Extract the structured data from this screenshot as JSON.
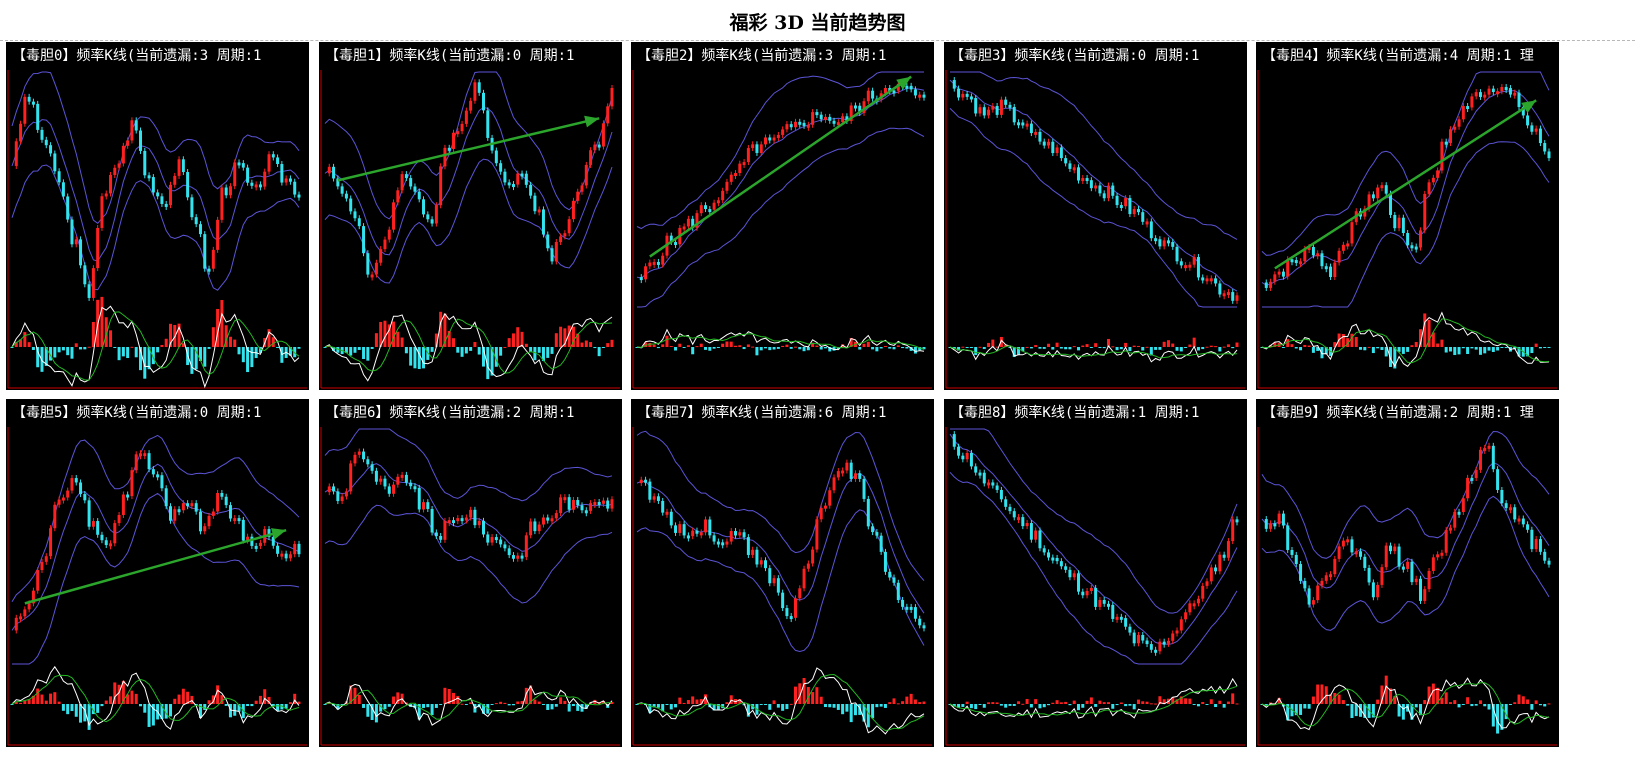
{
  "page": {
    "title": "福彩 3D 当前趋势图"
  },
  "colors": {
    "background": "#000000",
    "axis": "#cc0000",
    "up_bar": "#ff2020",
    "down_bar": "#33e3ee",
    "bands": "#5b54d6",
    "trend_arrow": "#2ba52b",
    "indicator_fast": "#ffffff",
    "indicator_slow": "#22b722"
  },
  "panels": [
    {
      "label": "【毒胆0】频率K线(当前遗漏:3 周期:1"
    },
    {
      "label": "【毒胆1】频率K线(当前遗漏:0 周期:1"
    },
    {
      "label": "【毒胆2】频率K线(当前遗漏:3 周期:1"
    },
    {
      "label": "【毒胆3】频率K线(当前遗漏:0 周期:1"
    },
    {
      "label": "【毒胆4】频率K线(当前遗漏:4 周期:1 理"
    },
    {
      "label": "【毒胆5】频率K线(当前遗漏:0 周期:1"
    },
    {
      "label": "【毒胆6】频率K线(当前遗漏:2 周期:1"
    },
    {
      "label": "【毒胆7】频率K线(当前遗漏:6 周期:1"
    },
    {
      "label": "【毒胆8】频率K线(当前遗漏:1 周期:1"
    },
    {
      "label": "【毒胆9】频率K线(当前遗漏:2 周期:1 理"
    }
  ],
  "chart_data": [
    {
      "type": "line",
      "subtitle": "【毒胆0】频率K线(当前遗漏:3 周期:1",
      "series": [
        {
          "values": [
            0.62,
            0.9,
            0.72,
            0.55,
            0.3,
            0.05,
            0.45,
            0.62,
            0.78,
            0.55,
            0.45,
            0.6,
            0.4,
            0.15,
            0.5,
            0.6,
            0.48,
            0.62,
            0.55,
            0.5
          ],
          "trend": "none"
        }
      ]
    },
    {
      "type": "line",
      "subtitle": "【毒胆1】频率K线(当前遗漏:0 周期:1",
      "series": [
        {
          "values": [
            0.6,
            0.5,
            0.4,
            0.1,
            0.3,
            0.55,
            0.5,
            0.35,
            0.65,
            0.8,
            0.95,
            0.7,
            0.5,
            0.6,
            0.4,
            0.22,
            0.35,
            0.55,
            0.7,
            0.9
          ],
          "trend": "up"
        }
      ]
    },
    {
      "type": "line",
      "subtitle": "【毒胆2】频率K线(当前遗漏:3 周期:1",
      "series": [
        {
          "values": [
            0.1,
            0.2,
            0.28,
            0.35,
            0.42,
            0.48,
            0.58,
            0.68,
            0.7,
            0.75,
            0.8,
            0.82,
            0.78,
            0.85,
            0.9,
            0.95,
            0.92,
            0.88
          ],
          "trend": "up"
        }
      ]
    },
    {
      "type": "line",
      "subtitle": "【毒胆3】频率K线(当前遗漏:0 周期:1",
      "series": [
        {
          "values": [
            0.95,
            0.9,
            0.82,
            0.85,
            0.8,
            0.72,
            0.68,
            0.6,
            0.55,
            0.5,
            0.45,
            0.4,
            0.32,
            0.25,
            0.2,
            0.15,
            0.08,
            0.05
          ],
          "trend": "none"
        }
      ]
    },
    {
      "type": "line",
      "subtitle": "【毒胆4】频率K线(当前遗漏:4 周期:1 理",
      "series": [
        {
          "values": [
            0.1,
            0.15,
            0.2,
            0.25,
            0.15,
            0.3,
            0.42,
            0.52,
            0.35,
            0.25,
            0.55,
            0.72,
            0.85,
            0.92,
            0.95,
            0.88,
            0.75,
            0.65
          ],
          "trend": "up"
        }
      ]
    },
    {
      "type": "line",
      "subtitle": "【毒胆5】频率K线(当前遗漏:0 周期:1",
      "series": [
        {
          "values": [
            0.15,
            0.25,
            0.45,
            0.72,
            0.8,
            0.6,
            0.5,
            0.7,
            0.9,
            0.78,
            0.62,
            0.7,
            0.58,
            0.72,
            0.6,
            0.5,
            0.55,
            0.45,
            0.5
          ],
          "trend": "up"
        }
      ]
    },
    {
      "type": "line",
      "subtitle": "【毒胆6】频率K线(当前遗漏:2 周期:1",
      "series": [
        {
          "values": [
            0.75,
            0.7,
            0.92,
            0.8,
            0.72,
            0.8,
            0.68,
            0.55,
            0.6,
            0.65,
            0.55,
            0.52,
            0.45,
            0.58,
            0.62,
            0.7,
            0.65,
            0.72,
            0.68
          ],
          "trend": "none"
        }
      ]
    },
    {
      "type": "line",
      "subtitle": "【毒胆7】频率K线(当前遗漏:6 周期:1",
      "series": [
        {
          "values": [
            0.8,
            0.7,
            0.6,
            0.55,
            0.6,
            0.5,
            0.58,
            0.45,
            0.35,
            0.2,
            0.4,
            0.65,
            0.85,
            0.78,
            0.55,
            0.35,
            0.25,
            0.15
          ],
          "trend": "none"
        }
      ]
    },
    {
      "type": "line",
      "subtitle": "【毒胆8】频率K线(当前遗漏:1 周期:1",
      "series": [
        {
          "values": [
            0.95,
            0.88,
            0.78,
            0.7,
            0.62,
            0.55,
            0.45,
            0.38,
            0.32,
            0.25,
            0.18,
            0.1,
            0.05,
            0.12,
            0.22,
            0.32,
            0.45,
            0.62
          ],
          "trend": "none"
        }
      ]
    },
    {
      "type": "line",
      "subtitle": "【毒胆9】频率K线(当前遗漏:2 周期:1 理",
      "series": [
        {
          "values": [
            0.6,
            0.62,
            0.45,
            0.25,
            0.35,
            0.52,
            0.45,
            0.3,
            0.5,
            0.42,
            0.3,
            0.45,
            0.62,
            0.78,
            0.95,
            0.72,
            0.6,
            0.52,
            0.45
          ],
          "trend": "none"
        }
      ]
    }
  ]
}
